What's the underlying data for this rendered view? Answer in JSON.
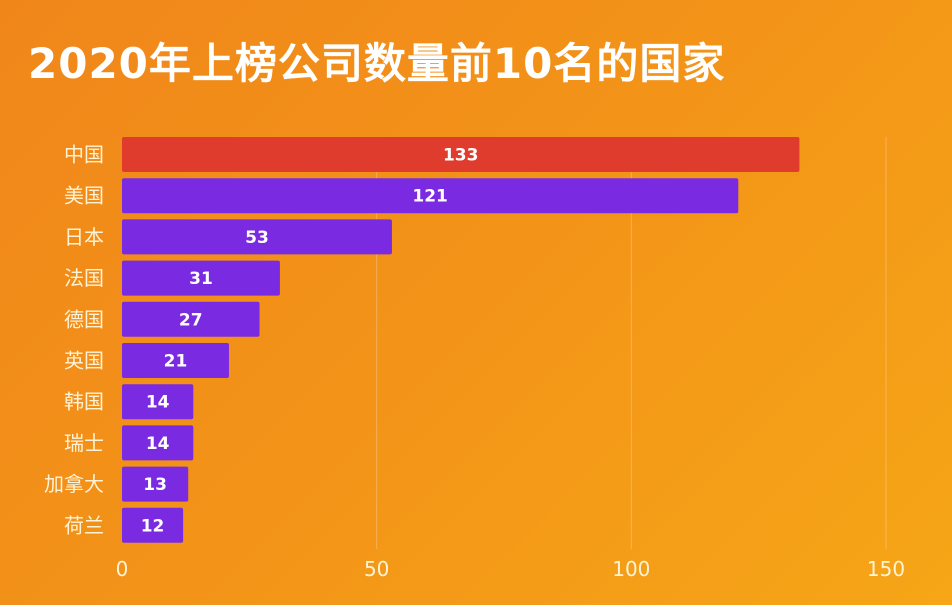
{
  "chart_data": {
    "type": "bar",
    "orientation": "horizontal",
    "title": "2020年上榜公司数量前10名的国家",
    "categories": [
      "中国",
      "美国",
      "日本",
      "法国",
      "德国",
      "英国",
      "韩国",
      "瑞士",
      "加拿大",
      "荷兰"
    ],
    "values": [
      133,
      121,
      53,
      31,
      27,
      21,
      14,
      14,
      13,
      12
    ],
    "xlim": [
      0,
      150
    ],
    "xticks": [
      "0",
      "50",
      "100",
      "150"
    ],
    "grid": true,
    "colors": {
      "highlight": "#e03c2e",
      "default": "#7a2ae0"
    }
  }
}
